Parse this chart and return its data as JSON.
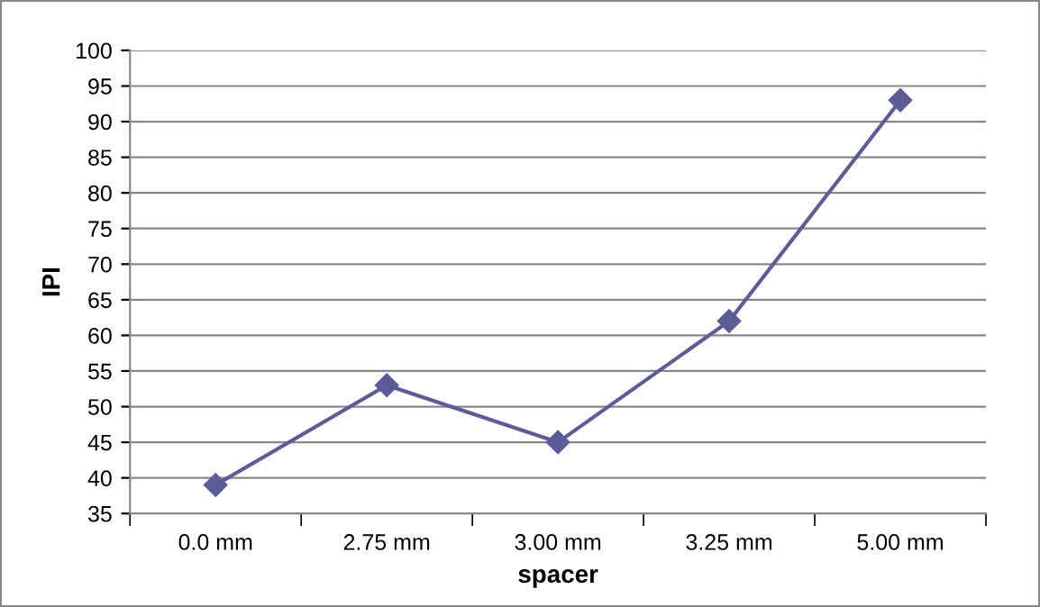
{
  "chart_data": {
    "type": "line",
    "xlabel": "spacer",
    "ylabel": "IPI",
    "categories": [
      "0.0 mm",
      "2.75 mm",
      "3.00 mm",
      "3.25 mm",
      "5.00 mm"
    ],
    "series": [
      {
        "color": "#5c5c99",
        "values": [
          39,
          53,
          45,
          62,
          93
        ]
      }
    ],
    "ylim": [
      35,
      100
    ],
    "yticks": [
      35,
      40,
      45,
      50,
      55,
      60,
      65,
      70,
      75,
      80,
      85,
      90,
      95,
      100
    ],
    "grid": "y",
    "marker": "diamond",
    "line_style": "solid",
    "legend": false
  }
}
